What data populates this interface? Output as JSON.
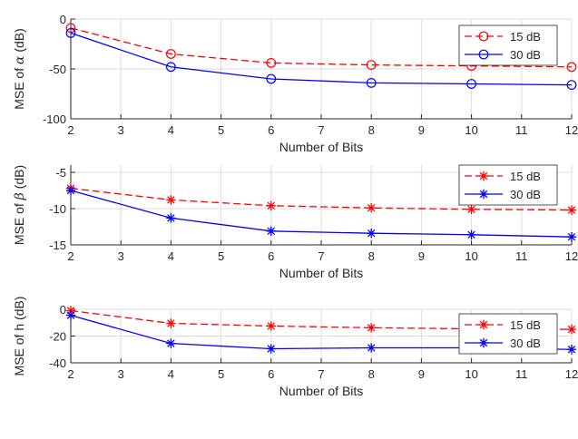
{
  "chart_data": [
    {
      "type": "line",
      "xlabel": "Number of Bits",
      "ylabel": "MSE of α (dB)",
      "ylabel_prefix": "MSE of ",
      "ylabel_symbol": "α",
      "ylabel_suffix": " (dB)",
      "xlim": [
        2,
        12
      ],
      "ylim": [
        -100,
        0
      ],
      "xticks": [
        2,
        3,
        4,
        5,
        6,
        7,
        8,
        9,
        10,
        11,
        12
      ],
      "yticks": [
        -100,
        -50,
        0
      ],
      "grid": true,
      "legend_position": "top-right",
      "series": [
        {
          "name": "15 dB",
          "color": "#ff0000",
          "dash": "dashed",
          "marker": "circle",
          "x": [
            2,
            4,
            6,
            8,
            10,
            12
          ],
          "y": [
            -9,
            -35,
            -44,
            -46,
            -47,
            -48
          ]
        },
        {
          "name": "30 dB",
          "color": "#0000ff",
          "dash": "solid",
          "marker": "circle",
          "x": [
            2,
            4,
            6,
            8,
            10,
            12
          ],
          "y": [
            -14,
            -48,
            -60,
            -64,
            -65,
            -66
          ]
        }
      ]
    },
    {
      "type": "line",
      "xlabel": "Number of Bits",
      "ylabel": "MSE of β (dB)",
      "ylabel_prefix": "MSE of ",
      "ylabel_symbol": "β",
      "ylabel_suffix": " (dB)",
      "xlim": [
        2,
        12
      ],
      "ylim": [
        -15,
        -4
      ],
      "xticks": [
        2,
        3,
        4,
        5,
        6,
        7,
        8,
        9,
        10,
        11,
        12
      ],
      "yticks": [
        -15,
        -10,
        -5
      ],
      "grid": true,
      "legend_position": "top-right",
      "series": [
        {
          "name": "15 dB",
          "color": "#ff0000",
          "dash": "dashed",
          "marker": "asterisk",
          "x": [
            2,
            4,
            6,
            8,
            10,
            12
          ],
          "y": [
            -7.2,
            -8.8,
            -9.6,
            -9.9,
            -10.1,
            -10.2
          ]
        },
        {
          "name": "30 dB",
          "color": "#0000ff",
          "dash": "solid",
          "marker": "asterisk",
          "x": [
            2,
            4,
            6,
            8,
            10,
            12
          ],
          "y": [
            -7.5,
            -11.3,
            -13.1,
            -13.4,
            -13.6,
            -13.9
          ]
        }
      ]
    },
    {
      "type": "line",
      "xlabel": "Number of Bits",
      "ylabel": "MSE of h (dB)",
      "ylabel_prefix": "MSE of h (dB)",
      "ylabel_symbol": "",
      "ylabel_suffix": "",
      "xlim": [
        2,
        12
      ],
      "ylim": [
        -40,
        0
      ],
      "xticks": [
        2,
        3,
        4,
        5,
        6,
        7,
        8,
        9,
        10,
        11,
        12
      ],
      "yticks": [
        -40,
        -20,
        0
      ],
      "grid": true,
      "legend_position": "top-right",
      "series": [
        {
          "name": "15 dB",
          "color": "#ff0000",
          "dash": "dashed",
          "marker": "asterisk",
          "x": [
            2,
            4,
            6,
            8,
            10,
            12
          ],
          "y": [
            -1,
            -10.5,
            -12.5,
            -13.8,
            -14.6,
            -15
          ]
        },
        {
          "name": "30 dB",
          "color": "#0000ff",
          "dash": "solid",
          "marker": "asterisk",
          "x": [
            2,
            4,
            6,
            8,
            10,
            12
          ],
          "y": [
            -4.5,
            -25.5,
            -29.5,
            -28.8,
            -28.8,
            -30
          ]
        }
      ]
    }
  ]
}
